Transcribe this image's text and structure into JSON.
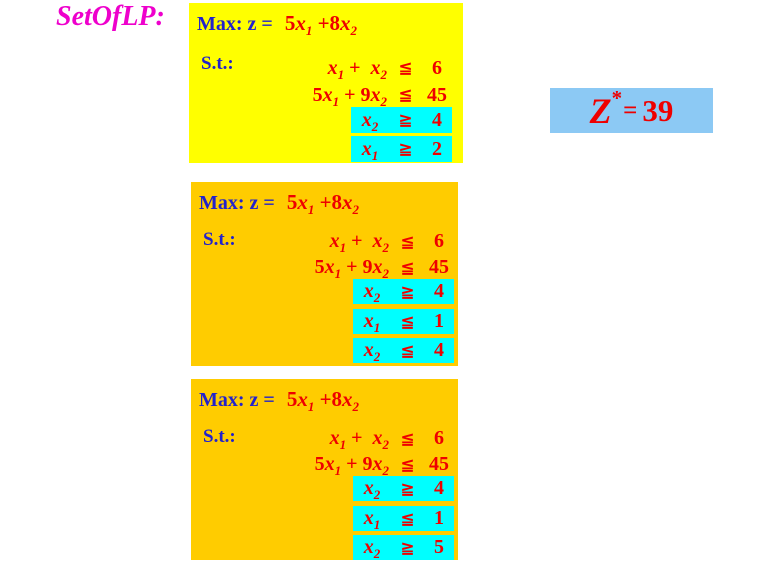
{
  "title": "SetOfLP:",
  "result": {
    "base": "Z",
    "sup": "*",
    "eq": "=",
    "value": "39"
  },
  "colors": {
    "title": "#EE00CC",
    "label_blue": "#2222CC",
    "text_red": "#EE0000",
    "yellow": "#FFFF00",
    "gold": "#FFCC00",
    "cyan": "#00FFFF",
    "light_blue": "#8CC9F4"
  },
  "blocks": [
    {
      "objective_label": "Max: z =",
      "objective_tokens": [
        {
          "t": "5"
        },
        {
          "v": "x",
          "s": "1"
        },
        {
          "t": " +8"
        },
        {
          "v": "x",
          "s": "2"
        }
      ],
      "st_label": "S.t.:",
      "constraints": [
        {
          "tokens": [
            {
              "v": "x",
              "s": "1"
            },
            {
              "t": " +  "
            },
            {
              "v": "x",
              "s": "2"
            }
          ],
          "op": "≦",
          "value": "6",
          "highlight": false
        },
        {
          "tokens": [
            {
              "t": "5"
            },
            {
              "v": "x",
              "s": "1"
            },
            {
              "t": " + 9"
            },
            {
              "v": "x",
              "s": "2"
            }
          ],
          "op": "≦",
          "value": "45",
          "highlight": false
        },
        {
          "tokens": [
            {
              "v": "x",
              "s": "2"
            }
          ],
          "op": "≧",
          "value": "4",
          "highlight": true
        },
        {
          "tokens": [
            {
              "v": "x",
              "s": "1"
            }
          ],
          "op": "≧",
          "value": "2",
          "highlight": true
        }
      ]
    },
    {
      "objective_label": "Max: z =",
      "objective_tokens": [
        {
          "t": "5"
        },
        {
          "v": "x",
          "s": "1"
        },
        {
          "t": " +8"
        },
        {
          "v": "x",
          "s": "2"
        }
      ],
      "st_label": "S.t.:",
      "constraints": [
        {
          "tokens": [
            {
              "v": "x",
              "s": "1"
            },
            {
              "t": " +  "
            },
            {
              "v": "x",
              "s": "2"
            }
          ],
          "op": "≦",
          "value": "6",
          "highlight": false
        },
        {
          "tokens": [
            {
              "t": "5"
            },
            {
              "v": "x",
              "s": "1"
            },
            {
              "t": " + 9"
            },
            {
              "v": "x",
              "s": "2"
            }
          ],
          "op": "≦",
          "value": "45",
          "highlight": false
        },
        {
          "tokens": [
            {
              "v": "x",
              "s": "2"
            }
          ],
          "op": "≧",
          "value": "4",
          "highlight": true
        },
        {
          "tokens": [
            {
              "v": "x",
              "s": "1"
            }
          ],
          "op": "≦",
          "value": "1",
          "highlight": true
        },
        {
          "tokens": [
            {
              "v": "x",
              "s": "2"
            }
          ],
          "op": "≦",
          "value": "4",
          "highlight": true
        }
      ]
    },
    {
      "objective_label": "Max: z =",
      "objective_tokens": [
        {
          "t": "5"
        },
        {
          "v": "x",
          "s": "1"
        },
        {
          "t": " +8"
        },
        {
          "v": "x",
          "s": "2"
        }
      ],
      "st_label": "S.t.:",
      "constraints": [
        {
          "tokens": [
            {
              "v": "x",
              "s": "1"
            },
            {
              "t": " +  "
            },
            {
              "v": "x",
              "s": "2"
            }
          ],
          "op": "≦",
          "value": "6",
          "highlight": false
        },
        {
          "tokens": [
            {
              "t": "5"
            },
            {
              "v": "x",
              "s": "1"
            },
            {
              "t": " + 9"
            },
            {
              "v": "x",
              "s": "2"
            }
          ],
          "op": "≦",
          "value": "45",
          "highlight": false
        },
        {
          "tokens": [
            {
              "v": "x",
              "s": "2"
            }
          ],
          "op": "≧",
          "value": "4",
          "highlight": true
        },
        {
          "tokens": [
            {
              "v": "x",
              "s": "1"
            }
          ],
          "op": "≦",
          "value": "1",
          "highlight": true
        },
        {
          "tokens": [
            {
              "v": "x",
              "s": "2"
            }
          ],
          "op": "≧",
          "value": "5",
          "highlight": true
        }
      ]
    }
  ]
}
